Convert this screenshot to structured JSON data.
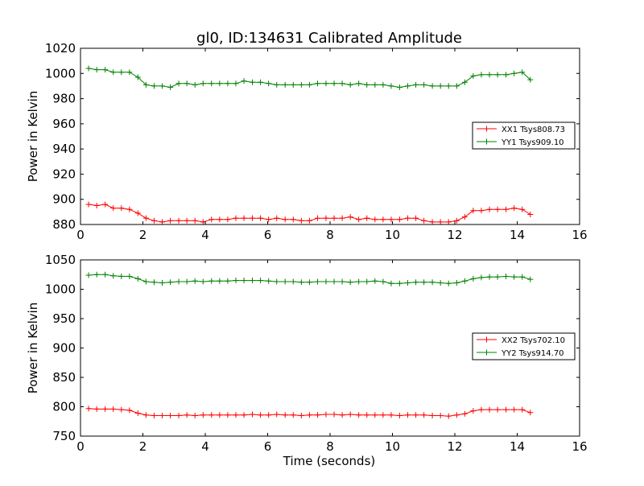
{
  "figure": {
    "title": "gl0, ID:134631 Calibrated Amplitude",
    "xlabel": "Time (seconds)"
  },
  "chart_data": [
    {
      "type": "line",
      "ylabel": "Power in Kelvin",
      "xlim": [
        0,
        16
      ],
      "ylim": [
        880,
        1020
      ],
      "xticks": [
        0,
        2,
        4,
        6,
        8,
        10,
        12,
        14,
        16
      ],
      "yticks": [
        880,
        900,
        920,
        940,
        960,
        980,
        1000,
        1020
      ],
      "legend_position": "right",
      "x": [
        0.26,
        0.52,
        0.79,
        1.05,
        1.31,
        1.57,
        1.84,
        2.1,
        2.36,
        2.62,
        2.88,
        3.15,
        3.41,
        3.67,
        3.93,
        4.2,
        4.46,
        4.72,
        4.98,
        5.24,
        5.51,
        5.77,
        6.03,
        6.29,
        6.56,
        6.82,
        7.08,
        7.34,
        7.6,
        7.87,
        8.13,
        8.39,
        8.65,
        8.92,
        9.18,
        9.44,
        9.7,
        9.96,
        10.23,
        10.49,
        10.75,
        11.01,
        11.28,
        11.54,
        11.8,
        12.06,
        12.32,
        12.59,
        12.85,
        13.11,
        13.37,
        13.64,
        13.9,
        14.16,
        14.42
      ],
      "series": [
        {
          "name": "XX1 Tsys808.73",
          "color": "#ff0000",
          "values": [
            896,
            895,
            896,
            893,
            893,
            892,
            889,
            885,
            883,
            882,
            883,
            883,
            883,
            883,
            882,
            884,
            884,
            884,
            885,
            885,
            885,
            885,
            884,
            885,
            884,
            884,
            883,
            883,
            885,
            885,
            885,
            885,
            886,
            884,
            885,
            884,
            884,
            884,
            884,
            885,
            885,
            883,
            882,
            882,
            882,
            883,
            886,
            891,
            891,
            892,
            892,
            892,
            893,
            892,
            888
          ]
        },
        {
          "name": "YY1 Tsys909.10",
          "color": "#008000",
          "values": [
            1004,
            1003,
            1003,
            1001,
            1001,
            1001,
            997,
            991,
            990,
            990,
            989,
            992,
            992,
            991,
            992,
            992,
            992,
            992,
            992,
            994,
            993,
            993,
            992,
            991,
            991,
            991,
            991,
            991,
            992,
            992,
            992,
            992,
            991,
            992,
            991,
            991,
            991,
            990,
            989,
            990,
            991,
            991,
            990,
            990,
            990,
            990,
            993,
            998,
            999,
            999,
            999,
            999,
            1000,
            1001,
            995
          ]
        }
      ]
    },
    {
      "type": "line",
      "ylabel": "Power in Kelvin",
      "xlabel": "Time (seconds)",
      "xlim": [
        0,
        16
      ],
      "ylim": [
        750,
        1050
      ],
      "xticks": [
        0,
        2,
        4,
        6,
        8,
        10,
        12,
        14,
        16
      ],
      "yticks": [
        750,
        800,
        850,
        900,
        950,
        1000,
        1050
      ],
      "legend_position": "right",
      "x": [
        0.26,
        0.52,
        0.79,
        1.05,
        1.31,
        1.57,
        1.84,
        2.1,
        2.36,
        2.62,
        2.88,
        3.15,
        3.41,
        3.67,
        3.93,
        4.2,
        4.46,
        4.72,
        4.98,
        5.24,
        5.51,
        5.77,
        6.03,
        6.29,
        6.56,
        6.82,
        7.08,
        7.34,
        7.6,
        7.87,
        8.13,
        8.39,
        8.65,
        8.92,
        9.18,
        9.44,
        9.7,
        9.96,
        10.23,
        10.49,
        10.75,
        11.01,
        11.28,
        11.54,
        11.8,
        12.06,
        12.32,
        12.59,
        12.85,
        13.11,
        13.37,
        13.64,
        13.9,
        14.16,
        14.42
      ],
      "series": [
        {
          "name": "XX2 Tsys702.10",
          "color": "#ff0000",
          "values": [
            797,
            796,
            796,
            796,
            795,
            794,
            789,
            786,
            785,
            785,
            785,
            785,
            786,
            785,
            786,
            786,
            786,
            786,
            786,
            786,
            787,
            786,
            786,
            787,
            786,
            786,
            785,
            786,
            786,
            787,
            787,
            786,
            787,
            786,
            786,
            786,
            786,
            786,
            785,
            786,
            786,
            786,
            785,
            785,
            784,
            786,
            788,
            793,
            795,
            795,
            795,
            795,
            795,
            795,
            790
          ]
        },
        {
          "name": "YY2 Tsys914.70",
          "color": "#008000",
          "values": [
            1024,
            1025,
            1025,
            1023,
            1022,
            1022,
            1018,
            1013,
            1012,
            1011,
            1012,
            1013,
            1013,
            1014,
            1013,
            1014,
            1014,
            1014,
            1015,
            1015,
            1015,
            1015,
            1014,
            1013,
            1013,
            1013,
            1012,
            1012,
            1013,
            1013,
            1013,
            1013,
            1012,
            1013,
            1013,
            1014,
            1013,
            1010,
            1010,
            1011,
            1012,
            1012,
            1012,
            1011,
            1010,
            1011,
            1014,
            1018,
            1020,
            1021,
            1021,
            1022,
            1021,
            1021,
            1017
          ]
        }
      ]
    }
  ]
}
